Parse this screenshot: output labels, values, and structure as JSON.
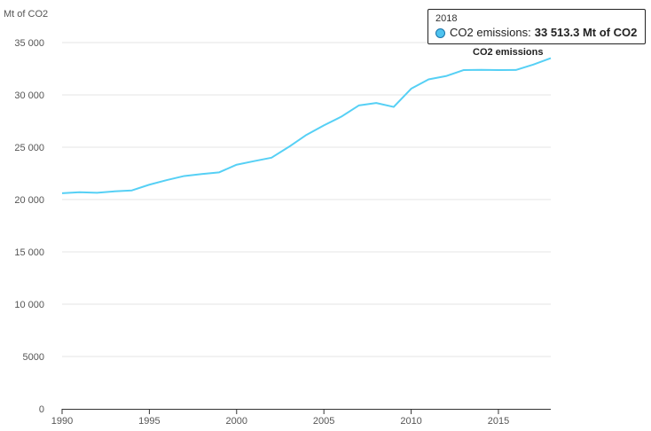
{
  "colors": {
    "series": "#56d0f5",
    "grid": "#e6e6e6",
    "axis": "#333333",
    "tooltip_dot": "#4fc3ef"
  },
  "chart_data": {
    "type": "line",
    "y_unit_label": "Mt of CO2",
    "ylim": [
      0,
      35000
    ],
    "xlim": [
      1990,
      2018
    ],
    "grid": true,
    "y_ticks": [
      0,
      5000,
      10000,
      15000,
      20000,
      25000,
      30000,
      35000
    ],
    "y_tick_labels": [
      "0",
      "5000",
      "10 000",
      "15 000",
      "20 000",
      "25 000",
      "30 000",
      "35 000"
    ],
    "x_ticks": [
      1990,
      1995,
      2000,
      2005,
      2010,
      2015
    ],
    "x_tick_labels": [
      "1990",
      "1995",
      "2000",
      "2005",
      "2010",
      "2015"
    ],
    "series": [
      {
        "name": "CO2 emissions",
        "x": [
          1990,
          1991,
          1992,
          1993,
          1994,
          1995,
          1996,
          1997,
          1998,
          1999,
          2000,
          2001,
          2002,
          2003,
          2004,
          2005,
          2006,
          2007,
          2008,
          2009,
          2010,
          2011,
          2012,
          2013,
          2014,
          2015,
          2016,
          2017,
          2018
        ],
        "values": [
          20600,
          20700,
          20650,
          20780,
          20870,
          21420,
          21860,
          22250,
          22440,
          22600,
          23330,
          23670,
          24000,
          25040,
          26180,
          27090,
          27920,
          28990,
          29230,
          28850,
          30590,
          31480,
          31800,
          32370,
          32390,
          32370,
          32380,
          32900,
          33513.3
        ]
      }
    ],
    "tooltip": {
      "year": "2018",
      "series_name": "CO2 emissions:",
      "value_text": "33 513.3 Mt of CO2"
    }
  }
}
